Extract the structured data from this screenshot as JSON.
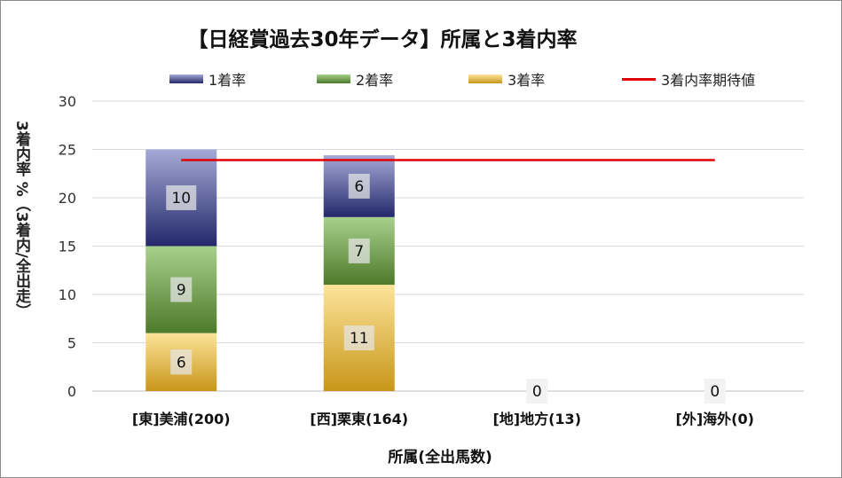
{
  "chart_data": {
    "type": "bar",
    "stacked": true,
    "title": "【日経賞過去30年データ】所属と3着内率",
    "xlabel": "所属(全出馬数)",
    "ylabel": "3着内率 %（3着内/全出走）",
    "categories": [
      "[東]美浦(200)",
      "[西]栗東(164)",
      "[地]地方(13)",
      "[外]海外(0)"
    ],
    "ylim": [
      0,
      30
    ],
    "yticks": [
      0,
      5,
      10,
      15,
      20,
      25,
      30
    ],
    "grid": true,
    "legend_position": "top",
    "series": [
      {
        "name": "3着率",
        "values": [
          6,
          11,
          0,
          0
        ],
        "color_top": "#fde49a",
        "color_bottom": "#c8961a"
      },
      {
        "name": "2着率",
        "values": [
          9,
          7,
          0,
          0
        ],
        "color_top": "#a8d08d",
        "color_bottom": "#4e7a2a"
      },
      {
        "name": "1着率",
        "values": [
          10,
          6,
          0,
          0
        ],
        "color_top": "#a4aad6",
        "color_bottom": "#23286b"
      }
    ],
    "data_labels": [
      [
        "6",
        "9",
        "10"
      ],
      [
        "11",
        "7",
        "6"
      ],
      [
        "0",
        "",
        ""
      ],
      [
        "0",
        "",
        ""
      ]
    ],
    "bar_totals": [
      25,
      24.4,
      0,
      0
    ],
    "reference_line": {
      "name": "3着内率期待値",
      "value": 23.9,
      "color": "#e00000"
    },
    "legend": [
      {
        "name": "1着率",
        "kind": "bar",
        "color_top": "#a4aad6",
        "color_bottom": "#23286b"
      },
      {
        "name": "2着率",
        "kind": "bar",
        "color_top": "#a8d08d",
        "color_bottom": "#4e7a2a"
      },
      {
        "name": "3着率",
        "kind": "bar",
        "color_top": "#fde49a",
        "color_bottom": "#c8961a"
      },
      {
        "name": "3着内率期待値",
        "kind": "line",
        "color": "#e00000"
      }
    ]
  }
}
